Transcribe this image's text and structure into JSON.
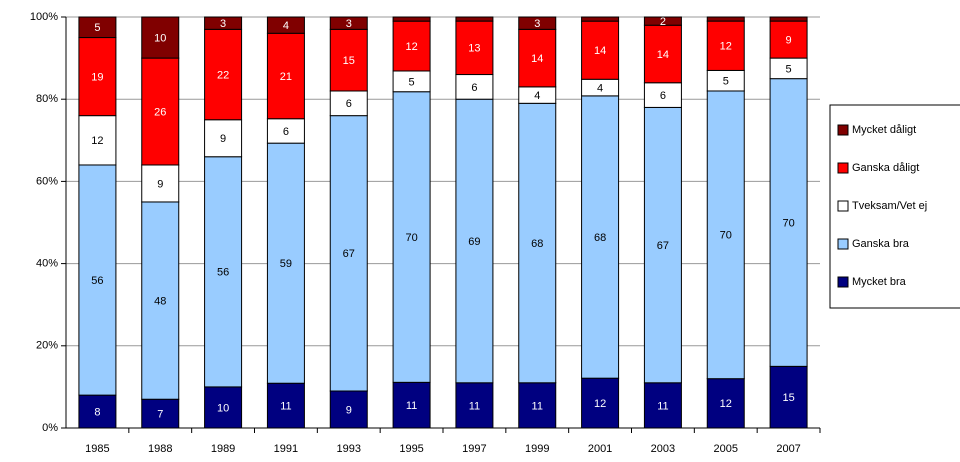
{
  "chart_data": {
    "type": "stacked_percent_bar",
    "categories": [
      "1985",
      "1988",
      "1989",
      "1991",
      "1993",
      "1995",
      "1997",
      "1999",
      "2001",
      "2003",
      "2005",
      "2007"
    ],
    "series": [
      {
        "name": "Mycket bra",
        "color": "#000080",
        "label_color": "#ffffff",
        "values": [
          8,
          7,
          10,
          11,
          9,
          11,
          11,
          11,
          12,
          11,
          12,
          15
        ]
      },
      {
        "name": "Ganska bra",
        "color": "#99ccff",
        "label_color": "#000000",
        "values": [
          56,
          48,
          56,
          59,
          67,
          70,
          69,
          68,
          68,
          67,
          70,
          70
        ]
      },
      {
        "name": "Tveksam/Vet ej",
        "color": "#ffffff",
        "label_color": "#000000",
        "values": [
          12,
          9,
          9,
          6,
          6,
          5,
          6,
          4,
          4,
          6,
          5,
          5
        ]
      },
      {
        "name": "Ganska dåligt",
        "color": "#ff0000",
        "label_color": "#ffffff",
        "values": [
          19,
          26,
          22,
          21,
          15,
          12,
          13,
          14,
          14,
          14,
          12,
          9
        ]
      },
      {
        "name": "Mycket dåligt",
        "color": "#800000",
        "label_color": "#ffffff",
        "values": [
          5,
          10,
          3,
          4,
          3,
          1,
          1,
          3,
          1,
          2,
          1,
          1
        ]
      }
    ],
    "ylim": [
      0,
      100
    ],
    "yticks": [
      {
        "value": 0,
        "label": "0%"
      },
      {
        "value": 20,
        "label": "20%"
      },
      {
        "value": 40,
        "label": "40%"
      },
      {
        "value": 60,
        "label": "60%"
      },
      {
        "value": 80,
        "label": "80%"
      },
      {
        "value": 100,
        "label": "100%"
      }
    ],
    "grid": true,
    "legend": "right"
  }
}
